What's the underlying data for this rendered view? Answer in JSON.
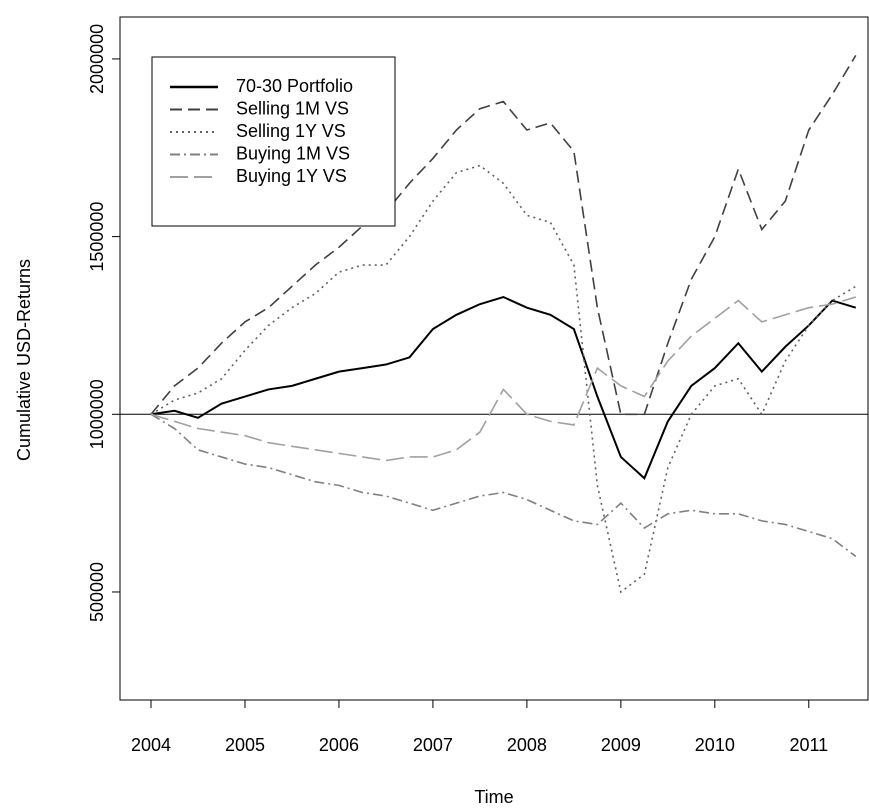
{
  "chart_data": {
    "type": "line",
    "xlabel": "Time",
    "ylabel": "Cumulative USD-Returns",
    "x": [
      2004,
      2004.25,
      2004.5,
      2004.75,
      2005,
      2005.25,
      2005.5,
      2005.75,
      2006,
      2006.25,
      2006.5,
      2006.75,
      2007,
      2007.25,
      2007.5,
      2007.75,
      2008,
      2008.25,
      2008.5,
      2008.75,
      2009,
      2009.25,
      2009.5,
      2009.75,
      2010,
      2010.25,
      2010.5,
      2010.75,
      2011,
      2011.25,
      2011.5
    ],
    "series": [
      {
        "name": "70-30 Portfolio",
        "color": "#000000",
        "linestyle": "solid",
        "values": [
          1000000,
          1010000,
          990000,
          1030000,
          1050000,
          1070000,
          1080000,
          1100000,
          1120000,
          1130000,
          1140000,
          1160000,
          1240000,
          1280000,
          1310000,
          1330000,
          1300000,
          1280000,
          1240000,
          1050000,
          880000,
          820000,
          980000,
          1080000,
          1130000,
          1200000,
          1120000,
          1190000,
          1250000,
          1320000,
          1300000
        ]
      },
      {
        "name": "Selling 1M VS",
        "color": "#404040",
        "linestyle": "dashed",
        "values": [
          1000000,
          1080000,
          1130000,
          1200000,
          1260000,
          1300000,
          1360000,
          1420000,
          1470000,
          1530000,
          1570000,
          1650000,
          1720000,
          1800000,
          1860000,
          1880000,
          1800000,
          1820000,
          1740000,
          1300000,
          1000000,
          1000000,
          1200000,
          1380000,
          1500000,
          1690000,
          1520000,
          1600000,
          1800000,
          1900000,
          2010000
        ]
      },
      {
        "name": "Selling 1Y VS",
        "color": "#606060",
        "linestyle": "dotted",
        "values": [
          1000000,
          1040000,
          1060000,
          1100000,
          1180000,
          1250000,
          1300000,
          1340000,
          1400000,
          1420000,
          1420000,
          1500000,
          1600000,
          1680000,
          1700000,
          1650000,
          1560000,
          1540000,
          1420000,
          800000,
          500000,
          550000,
          850000,
          1000000,
          1080000,
          1100000,
          1000000,
          1150000,
          1250000,
          1320000,
          1360000
        ]
      },
      {
        "name": "Buying 1M VS",
        "color": "#808080",
        "linestyle": "dotdash",
        "values": [
          1000000,
          960000,
          900000,
          880000,
          860000,
          850000,
          830000,
          810000,
          800000,
          780000,
          770000,
          750000,
          730000,
          750000,
          770000,
          780000,
          760000,
          730000,
          700000,
          690000,
          750000,
          680000,
          720000,
          730000,
          720000,
          720000,
          700000,
          690000,
          670000,
          650000,
          600000
        ]
      },
      {
        "name": "Buying 1Y VS",
        "color": "#a0a0a0",
        "linestyle": "longdash",
        "values": [
          1000000,
          980000,
          960000,
          950000,
          940000,
          920000,
          910000,
          900000,
          890000,
          880000,
          870000,
          880000,
          880000,
          900000,
          950000,
          1070000,
          1000000,
          980000,
          970000,
          1130000,
          1080000,
          1050000,
          1150000,
          1220000,
          1270000,
          1320000,
          1260000,
          1280000,
          1300000,
          1310000,
          1330000
        ]
      }
    ],
    "hline": 1000000,
    "xlim": [
      2003.67,
      2011.63
    ],
    "xticks": [
      2004,
      2005,
      2006,
      2007,
      2008,
      2009,
      2010,
      2011
    ],
    "ylim": [
      196000,
      2118000
    ],
    "yticks": [
      500000,
      1000000,
      1500000,
      2000000
    ],
    "legend": "top-left",
    "grid": false
  }
}
